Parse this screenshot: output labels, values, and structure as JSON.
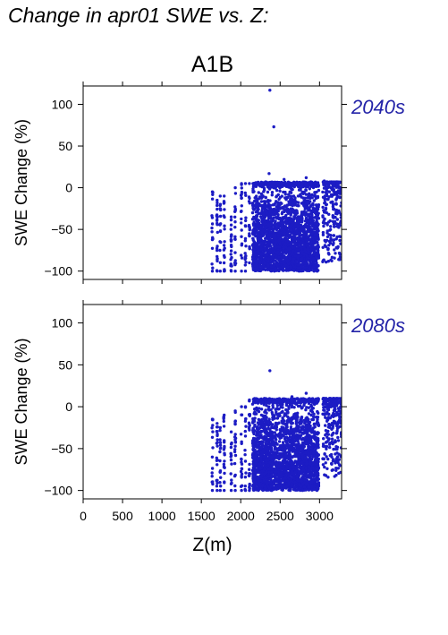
{
  "title": "Change in apr01 SWE vs. Z:",
  "colors": {
    "points": "#1c1cc4",
    "panel_tag": "#2323a8",
    "axes": "#000000"
  },
  "chart_data": {
    "type": "scatter",
    "scenario": "A1B",
    "xlabel": "Z(m)",
    "ylabel": "SWE Change (%)",
    "xlim": [
      0,
      3280
    ],
    "ylim": [
      -110,
      122
    ],
    "x_ticks": [
      0,
      500,
      1000,
      1500,
      2000,
      2500,
      3000
    ],
    "y_ticks": [
      -100,
      -50,
      0,
      50,
      100
    ],
    "grid": false,
    "panels": [
      {
        "label": "2040s",
        "column_xs": [
          1640,
          1700,
          1740,
          1790,
          1880,
          1930,
          2010,
          2060,
          2110
        ],
        "column_ranges": [
          [
            -100,
            -5
          ],
          [
            -100,
            -15
          ],
          [
            -100,
            -10
          ],
          [
            -100,
            -10
          ],
          [
            -100,
            -35
          ],
          [
            -100,
            0
          ],
          [
            -100,
            5
          ],
          [
            -100,
            5
          ],
          [
            -90,
            5
          ]
        ],
        "dense_cloud": {
          "x_range": [
            2150,
            2990
          ],
          "y_range": [
            -100,
            7
          ]
        },
        "right_cluster": {
          "x_range": [
            3040,
            3280
          ],
          "y_range": [
            -90,
            7
          ]
        },
        "outliers": [
          [
            2370,
            117
          ],
          [
            2420,
            73
          ],
          [
            2360,
            17
          ],
          [
            2830,
            12
          ],
          [
            2550,
            10
          ],
          [
            3060,
            8
          ]
        ]
      },
      {
        "label": "2080s",
        "column_xs": [
          1640,
          1700,
          1740,
          1790,
          1880,
          1930,
          2010,
          2060,
          2110
        ],
        "column_ranges": [
          [
            -100,
            -15
          ],
          [
            -100,
            -20
          ],
          [
            -100,
            -25
          ],
          [
            -100,
            -10
          ],
          [
            -100,
            -30
          ],
          [
            -100,
            -5
          ],
          [
            -100,
            0
          ],
          [
            -100,
            0
          ],
          [
            -100,
            8
          ]
        ],
        "dense_cloud": {
          "x_range": [
            2150,
            2990
          ],
          "y_range": [
            -100,
            10
          ]
        },
        "right_cluster": {
          "x_range": [
            3040,
            3280
          ],
          "y_range": [
            -85,
            10
          ]
        },
        "outliers": [
          [
            2370,
            43
          ],
          [
            2830,
            16
          ],
          [
            2650,
            12
          ],
          [
            2300,
            10
          ],
          [
            3100,
            9
          ]
        ]
      }
    ]
  }
}
